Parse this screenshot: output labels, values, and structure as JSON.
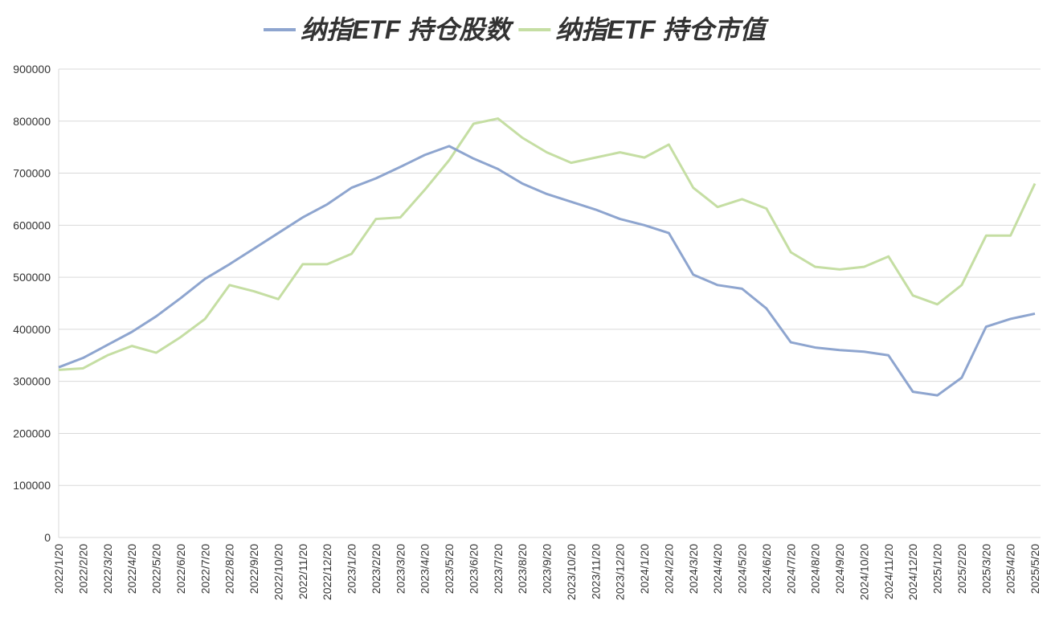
{
  "chart_data": {
    "type": "line",
    "categories": [
      "2022/1/20",
      "2022/2/20",
      "2022/3/20",
      "2022/4/20",
      "2022/5/20",
      "2022/6/20",
      "2022/7/20",
      "2022/8/20",
      "2022/9/20",
      "2022/10/20",
      "2022/11/20",
      "2022/12/20",
      "2023/1/20",
      "2023/2/20",
      "2023/3/20",
      "2023/4/20",
      "2023/5/20",
      "2023/6/20",
      "2023/7/20",
      "2023/8/20",
      "2023/9/20",
      "2023/10/20",
      "2023/11/20",
      "2023/12/20",
      "2024/1/20",
      "2024/2/20",
      "2024/3/20",
      "2024/4/20",
      "2024/5/20",
      "2024/6/20",
      "2024/7/20",
      "2024/8/20",
      "2024/9/20",
      "2024/10/20",
      "2024/11/20",
      "2024/12/20",
      "2025/1/20",
      "2025/2/20",
      "2025/3/20",
      "2025/4/20",
      "2025/5/20"
    ],
    "series": [
      {
        "name": "纳指ETF 持仓股数",
        "color": "#8ea5cf",
        "values": [
          327000,
          345000,
          370000,
          395000,
          425000,
          460000,
          497000,
          525000,
          555000,
          585000,
          615000,
          640000,
          672000,
          690000,
          712000,
          735000,
          752000,
          728000,
          708000,
          680000,
          660000,
          645000,
          630000,
          612000,
          600000,
          585000,
          505000,
          485000,
          478000,
          440000,
          375000,
          365000,
          360000,
          357000,
          350000,
          280000,
          273000,
          307000,
          405000,
          420000,
          430000
        ]
      },
      {
        "name": "纳指ETF 持仓市值",
        "color": "#c5dea3",
        "values": [
          322000,
          325000,
          350000,
          368000,
          355000,
          385000,
          420000,
          485000,
          473000,
          458000,
          525000,
          525000,
          545000,
          612000,
          615000,
          668000,
          725000,
          795000,
          805000,
          768000,
          740000,
          720000,
          730000,
          740000,
          730000,
          755000,
          672000,
          635000,
          650000,
          632000,
          548000,
          520000,
          515000,
          520000,
          540000,
          465000,
          448000,
          485000,
          580000,
          580000,
          680000
        ]
      }
    ],
    "ylim": [
      0,
      900000
    ],
    "yticks": [
      0,
      100000,
      200000,
      300000,
      400000,
      500000,
      600000,
      700000,
      800000,
      900000
    ],
    "grid": true
  }
}
